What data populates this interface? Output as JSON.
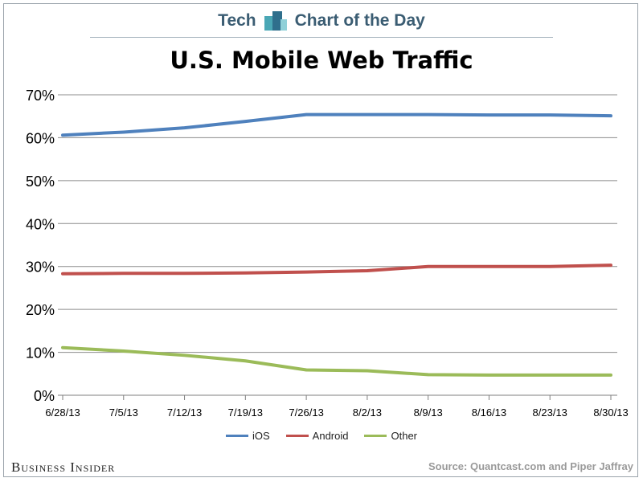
{
  "header": {
    "brand_left": "Tech",
    "brand_right": "Chart of the Day"
  },
  "footer": {
    "publisher": "Business Insider",
    "source": "Source: Quantcast.com and Piper Jaffray"
  },
  "colors": {
    "ios": "#4f81bd",
    "android": "#c0504d",
    "other": "#9bbb59",
    "grid": "#8c8c8c"
  },
  "chart_data": {
    "type": "line",
    "title": "U.S. Mobile Web Traffic",
    "xlabel": "",
    "ylabel": "",
    "x": [
      "6/28/13",
      "7/5/13",
      "7/12/13",
      "7/19/13",
      "7/26/13",
      "8/2/13",
      "8/9/13",
      "8/16/13",
      "8/23/13",
      "8/30/13"
    ],
    "ylim": [
      0,
      70
    ],
    "yticks": [
      "0%",
      "10%",
      "20%",
      "30%",
      "40%",
      "50%",
      "60%",
      "70%"
    ],
    "grid": true,
    "legend_position": "bottom",
    "series": [
      {
        "name": "iOS",
        "color": "#4f81bd",
        "values": [
          60.6,
          61.3,
          62.3,
          63.8,
          65.4,
          65.4,
          65.4,
          65.3,
          65.3,
          65.1
        ]
      },
      {
        "name": "Android",
        "color": "#c0504d",
        "values": [
          28.3,
          28.4,
          28.4,
          28.5,
          28.7,
          29.0,
          30.0,
          30.0,
          30.0,
          30.3
        ]
      },
      {
        "name": "Other",
        "color": "#9bbb59",
        "values": [
          11.1,
          10.3,
          9.3,
          8.0,
          5.9,
          5.7,
          4.8,
          4.7,
          4.7,
          4.7
        ]
      }
    ]
  }
}
